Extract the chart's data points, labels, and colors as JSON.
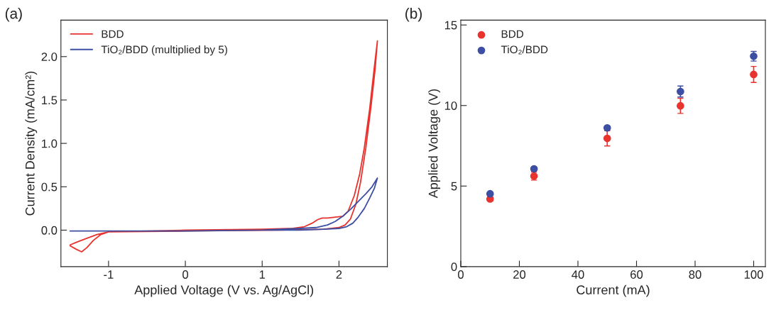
{
  "chart_data": [
    {
      "type": "line",
      "title": "(a)",
      "xlabel": "Applied Voltage (V vs. Ag/AgCl)",
      "ylabel": "Current Density (mA/cm²)",
      "xlim": [
        -1.62,
        2.63
      ],
      "ylim": [
        -0.42,
        2.42
      ],
      "xticks": [
        {
          "value": -1,
          "label": "-1"
        },
        0,
        1,
        2
      ],
      "yticks": [
        {
          "value": 0,
          "label": "0.0"
        },
        0.5,
        {
          "value": 1,
          "label": "1.0"
        },
        1.5,
        {
          "value": 2,
          "label": "2.0"
        }
      ],
      "legend": "top left",
      "grid": false,
      "line_style": "solid",
      "marker": "none",
      "series": [
        {
          "name": "BDD",
          "color": "#e8332e",
          "x": [
            -1.5,
            -1.42,
            -1.35,
            -1.28,
            -1.2,
            -1.1,
            -1.0,
            0,
            1,
            1.4,
            1.55,
            1.65,
            1.72,
            1.78,
            1.85,
            1.95,
            2.05,
            2.12,
            2.2,
            2.27,
            2.33,
            2.4,
            2.45,
            2.5,
            2.47,
            2.42,
            2.35,
            2.28,
            2.22,
            2.15,
            2.08,
            2.0,
            1.8,
            1.2,
            0,
            -1.0,
            -1.15,
            -1.3,
            -1.42,
            -1.5
          ],
          "values": [
            -0.18,
            -0.22,
            -0.25,
            -0.2,
            -0.12,
            -0.05,
            -0.02,
            0.0,
            0.01,
            0.02,
            0.04,
            0.08,
            0.12,
            0.14,
            0.14,
            0.15,
            0.16,
            0.22,
            0.4,
            0.65,
            0.95,
            1.4,
            1.8,
            2.18,
            1.85,
            1.45,
            0.95,
            0.55,
            0.3,
            0.13,
            0.06,
            0.03,
            0.01,
            0.0,
            -0.01,
            -0.02,
            -0.05,
            -0.1,
            -0.14,
            -0.17
          ]
        },
        {
          "name": "TiO₂/BDD (multiplied by 5)",
          "color": "#3d4fa3",
          "x": [
            -1.5,
            -1.0,
            0,
            1,
            1.5,
            1.7,
            1.85,
            1.95,
            2.05,
            2.15,
            2.25,
            2.35,
            2.43,
            2.5,
            2.46,
            2.4,
            2.33,
            2.25,
            2.18,
            2.1,
            2.0,
            1.8,
            1.5,
            1,
            0,
            -1.0,
            -1.45
          ],
          "values": [
            -0.01,
            -0.01,
            -0.01,
            0.0,
            0.02,
            0.03,
            0.06,
            0.1,
            0.16,
            0.24,
            0.33,
            0.42,
            0.5,
            0.6,
            0.48,
            0.37,
            0.25,
            0.15,
            0.08,
            0.04,
            0.02,
            0.01,
            0.0,
            0.0,
            -0.01,
            -0.01,
            -0.01
          ]
        }
      ]
    },
    {
      "type": "scatter",
      "title": "(b)",
      "xlabel": "Current (mA)",
      "ylabel": "Applied Voltage (V)",
      "xlim": [
        0,
        104
      ],
      "ylim": [
        0,
        15.3
      ],
      "xticks": [
        0,
        20,
        40,
        60,
        80,
        100
      ],
      "yticks": [
        0,
        5,
        10,
        15
      ],
      "legend": "top left",
      "grid": false,
      "marker": "circle",
      "series": [
        {
          "name": "BDD",
          "color": "#e8332e",
          "x": [
            10,
            25,
            50,
            75,
            100
          ],
          "values": [
            4.2,
            5.62,
            7.96,
            9.98,
            11.93
          ],
          "errors": [
            0.12,
            0.25,
            0.47,
            0.47,
            0.5
          ]
        },
        {
          "name": "TiO₂/BDD",
          "color": "#3d4fa3",
          "x": [
            10,
            25,
            50,
            75,
            100
          ],
          "values": [
            4.52,
            6.07,
            8.61,
            10.87,
            13.06
          ],
          "errors": [
            0.1,
            0.1,
            0.12,
            0.34,
            0.3
          ]
        }
      ]
    }
  ]
}
